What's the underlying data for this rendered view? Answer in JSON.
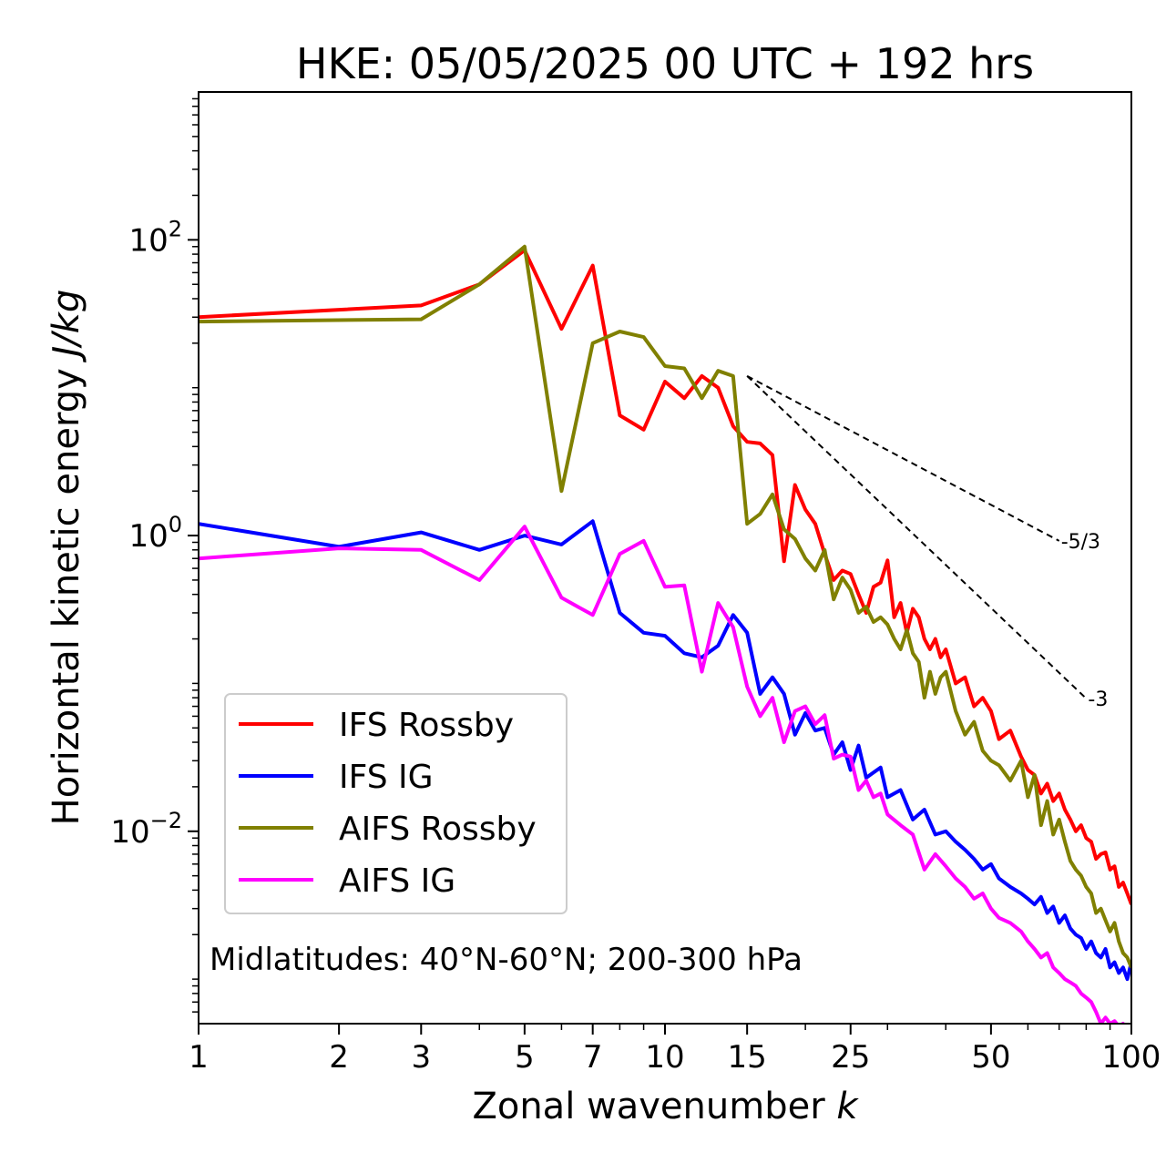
{
  "chart_data": {
    "type": "line",
    "title": "HKE: 05/05/2025 00 UTC + 192 hrs",
    "xlabel": "Zonal wavenumber",
    "xlabel_var": "k",
    "ylabel": "Horizontal kinetic energy",
    "ylabel_unit": "J/kg",
    "xscale": "log",
    "yscale": "log",
    "xlim": [
      1,
      100
    ],
    "ylim": [
      0.0005,
      1000
    ],
    "x_ticks": [
      1,
      2,
      3,
      5,
      7,
      10,
      15,
      25,
      50,
      100
    ],
    "x_tick_labels": [
      "1",
      "2",
      "3",
      "5",
      "7",
      "10",
      "15",
      "25",
      "50",
      "100"
    ],
    "y_ticks": [
      0.01,
      1,
      100
    ],
    "y_tick_labels": [
      {
        "base": "10",
        "exp": "−2"
      },
      {
        "base": "10",
        "exp": "0"
      },
      {
        "base": "10",
        "exp": "2"
      }
    ],
    "grid": false,
    "legend_position": "lower-left",
    "annotation": "Midlatitudes: 40°N-60°N; 200-300 hPa",
    "reference_slopes": [
      {
        "label": "-5/3",
        "slope": -1.6667,
        "x": [
          15,
          70
        ],
        "y_start": 12
      },
      {
        "label": "-3",
        "slope": -3,
        "x": [
          15,
          80
        ],
        "y_start": 12
      }
    ],
    "series": [
      {
        "name": "IFS Rossby",
        "color": "#ff0000",
        "x": [
          1,
          3,
          4,
          5,
          6,
          7,
          8,
          9,
          10,
          11,
          12,
          13,
          14,
          15,
          16,
          17,
          18,
          19,
          20,
          21,
          22,
          23,
          24,
          25,
          26,
          27,
          28,
          29,
          30,
          31,
          32,
          33,
          34,
          35,
          36,
          37,
          38,
          39,
          40,
          42,
          44,
          46,
          48,
          50,
          52,
          55,
          58,
          60,
          62,
          64,
          66,
          68,
          70,
          72,
          74,
          76,
          78,
          80,
          82,
          84,
          86,
          88,
          90,
          92,
          94,
          96,
          98,
          100
        ],
        "y": [
          30,
          36,
          50,
          85,
          25,
          67,
          6.5,
          5.2,
          11,
          8.5,
          12,
          10,
          5.5,
          4.3,
          4.2,
          3.5,
          0.67,
          2.2,
          1.5,
          1.2,
          0.75,
          0.5,
          0.58,
          0.55,
          0.4,
          0.3,
          0.45,
          0.48,
          0.68,
          0.28,
          0.35,
          0.22,
          0.32,
          0.28,
          0.2,
          0.17,
          0.2,
          0.15,
          0.17,
          0.1,
          0.11,
          0.07,
          0.08,
          0.065,
          0.042,
          0.048,
          0.032,
          0.026,
          0.024,
          0.018,
          0.021,
          0.016,
          0.018,
          0.014,
          0.012,
          0.01,
          0.011,
          0.009,
          0.0085,
          0.0065,
          0.007,
          0.0072,
          0.0055,
          0.0058,
          0.0042,
          0.0045,
          0.0038,
          0.0032
        ]
      },
      {
        "name": "IFS IG",
        "color": "#0000ff",
        "x": [
          1,
          2,
          3,
          4,
          5,
          6,
          7,
          8,
          9,
          10,
          11,
          12,
          13,
          14,
          15,
          16,
          17,
          18,
          19,
          20,
          21,
          22,
          23,
          24,
          25,
          26,
          27,
          28,
          29,
          30,
          32,
          34,
          36,
          38,
          40,
          42,
          44,
          46,
          48,
          50,
          52,
          55,
          58,
          60,
          62,
          64,
          66,
          68,
          70,
          72,
          74,
          76,
          78,
          80,
          82,
          84,
          86,
          88,
          90,
          92,
          94,
          96,
          98,
          100
        ],
        "y": [
          1.2,
          0.84,
          1.05,
          0.8,
          1.0,
          0.87,
          1.25,
          0.3,
          0.22,
          0.21,
          0.16,
          0.15,
          0.18,
          0.29,
          0.22,
          0.085,
          0.11,
          0.085,
          0.045,
          0.063,
          0.048,
          0.05,
          0.033,
          0.04,
          0.026,
          0.038,
          0.023,
          0.025,
          0.027,
          0.017,
          0.019,
          0.012,
          0.014,
          0.0095,
          0.01,
          0.0085,
          0.0075,
          0.0065,
          0.0055,
          0.006,
          0.0048,
          0.0042,
          0.0038,
          0.0035,
          0.0032,
          0.0036,
          0.0028,
          0.0031,
          0.0024,
          0.0027,
          0.0022,
          0.002,
          0.0019,
          0.0016,
          0.0018,
          0.0015,
          0.0014,
          0.0016,
          0.0012,
          0.0013,
          0.0011,
          0.0012,
          0.001,
          0.0013
        ]
      },
      {
        "name": "AIFS Rossby",
        "color": "#808000",
        "x": [
          1,
          3,
          4,
          5,
          6,
          7,
          8,
          9,
          10,
          11,
          12,
          13,
          14,
          15,
          16,
          17,
          18,
          19,
          20,
          21,
          22,
          23,
          24,
          25,
          26,
          27,
          28,
          29,
          30,
          31,
          32,
          33,
          34,
          35,
          36,
          37,
          38,
          39,
          40,
          42,
          44,
          46,
          48,
          50,
          52,
          55,
          58,
          60,
          62,
          64,
          66,
          68,
          70,
          72,
          74,
          76,
          78,
          80,
          82,
          84,
          86,
          88,
          90,
          92,
          94,
          96,
          98,
          100
        ],
        "y": [
          28,
          29,
          50,
          90,
          2.0,
          20,
          24,
          22,
          14,
          13.5,
          8.5,
          13,
          12,
          1.2,
          1.4,
          1.9,
          1.1,
          0.95,
          0.7,
          0.58,
          0.8,
          0.37,
          0.52,
          0.43,
          0.3,
          0.33,
          0.26,
          0.28,
          0.25,
          0.2,
          0.17,
          0.23,
          0.16,
          0.14,
          0.08,
          0.12,
          0.085,
          0.11,
          0.12,
          0.065,
          0.045,
          0.055,
          0.035,
          0.03,
          0.028,
          0.022,
          0.03,
          0.017,
          0.024,
          0.011,
          0.016,
          0.0095,
          0.012,
          0.0085,
          0.0063,
          0.0055,
          0.005,
          0.0042,
          0.0038,
          0.0028,
          0.003,
          0.0025,
          0.0021,
          0.0024,
          0.0018,
          0.0015,
          0.0014,
          0.0012
        ]
      },
      {
        "name": "AIFS IG",
        "color": "#ff00ff",
        "x": [
          1,
          2,
          3,
          4,
          5,
          6,
          7,
          8,
          9,
          10,
          11,
          12,
          13,
          14,
          15,
          16,
          17,
          18,
          19,
          20,
          21,
          22,
          23,
          24,
          25,
          26,
          27,
          28,
          29,
          30,
          32,
          34,
          36,
          38,
          40,
          42,
          44,
          46,
          48,
          50,
          52,
          55,
          58,
          60,
          62,
          64,
          66,
          68,
          70,
          72,
          74,
          76,
          78,
          80,
          82,
          84,
          86,
          88,
          90,
          92,
          94,
          96,
          98,
          100
        ],
        "y": [
          0.7,
          0.82,
          0.8,
          0.5,
          1.15,
          0.38,
          0.29,
          0.75,
          0.92,
          0.45,
          0.46,
          0.12,
          0.35,
          0.24,
          0.095,
          0.06,
          0.08,
          0.04,
          0.065,
          0.07,
          0.053,
          0.061,
          0.031,
          0.033,
          0.032,
          0.019,
          0.022,
          0.017,
          0.018,
          0.013,
          0.011,
          0.0095,
          0.0055,
          0.007,
          0.0058,
          0.0048,
          0.0042,
          0.0035,
          0.0038,
          0.003,
          0.0026,
          0.0024,
          0.0021,
          0.0018,
          0.0016,
          0.0014,
          0.0015,
          0.0012,
          0.0011,
          0.001,
          0.00095,
          0.0009,
          0.0008,
          0.00075,
          0.0007,
          0.0006,
          0.0005,
          0.00055,
          0.0005,
          0.00052,
          0.00048,
          0.0005,
          0.00045,
          0.00048
        ]
      }
    ]
  }
}
